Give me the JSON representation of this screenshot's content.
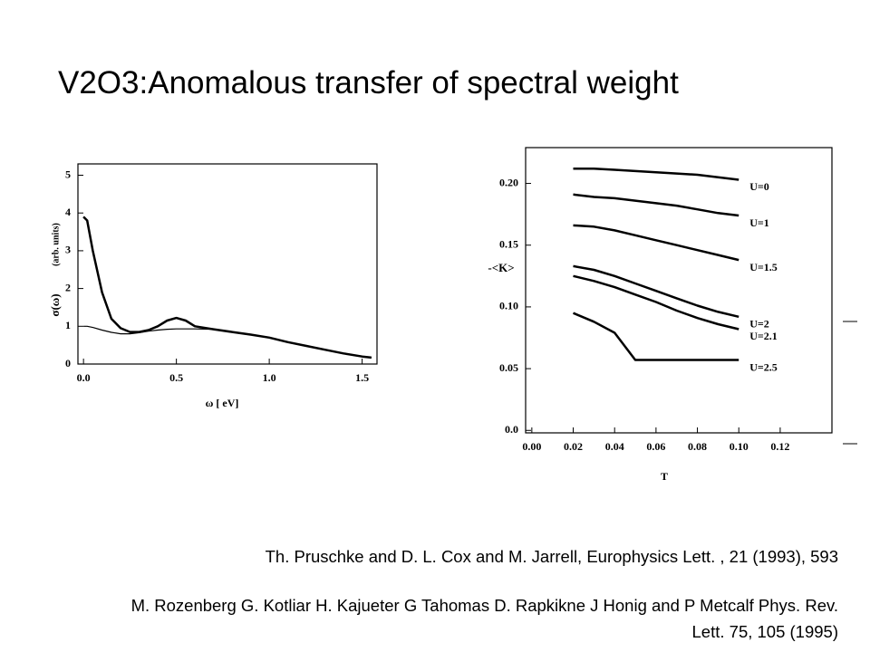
{
  "title": "V2O3:Anomalous transfer of spectral weight",
  "references": [
    "Th. Pruschke and D. L. Cox and M. Jarrell, Europhysics Lett. , 21 (1993), 593",
    "M. Rozenberg G. Kotliar H. Kajueter G Tahomas D. Rapkikne J Honig and P Metcalf Phys. Rev. Lett. 75, 105 (1995)"
  ],
  "chart_data": [
    {
      "type": "line",
      "xlabel": "ω  [ eV]",
      "ylabel": "σ(ω)",
      "ylabel_units": "(arb. units)",
      "x": [
        0,
        0.02,
        0.05,
        0.1,
        0.15,
        0.2,
        0.25,
        0.3,
        0.35,
        0.4,
        0.45,
        0.5,
        0.55,
        0.6,
        0.7,
        0.8,
        0.9,
        1.0,
        1.1,
        1.2,
        1.3,
        1.4,
        1.5,
        1.55
      ],
      "series": [
        {
          "color": "#000000",
          "width": 2.5,
          "values": [
            3.9,
            3.8,
            3.0,
            1.9,
            1.2,
            0.95,
            0.85,
            0.85,
            0.9,
            1.0,
            1.15,
            1.22,
            1.15,
            1.0,
            0.92,
            0.85,
            0.78,
            0.7,
            0.58,
            0.48,
            0.38,
            0.28,
            0.2,
            0.17
          ]
        },
        {
          "color": "#000000",
          "width": 1.2,
          "values": [
            1.0,
            1.0,
            0.97,
            0.9,
            0.84,
            0.8,
            0.8,
            0.83,
            0.87,
            0.9,
            0.92,
            0.93,
            0.93,
            0.93,
            0.92,
            0.85,
            0.78,
            0.7,
            0.58,
            0.48,
            0.38,
            0.28,
            0.2,
            0.17
          ]
        }
      ],
      "xlim": [
        -0.03,
        1.58
      ],
      "ylim": [
        0,
        5.3
      ],
      "xticks": [
        {
          "value": 0,
          "label": "0.0"
        },
        0.5,
        {
          "value": 1,
          "label": "1.0"
        },
        1.5
      ],
      "yticks": [
        0,
        1,
        2,
        3,
        4,
        5
      ]
    },
    {
      "type": "line",
      "xlabel": "T",
      "ylabel": "-<K>",
      "x": [
        0.02,
        0.03,
        0.04,
        0.05,
        0.06,
        0.07,
        0.08,
        0.09,
        0.1
      ],
      "series": [
        {
          "name": "U=0",
          "color": "#000000",
          "width": 2.5,
          "values": [
            0.212,
            0.212,
            0.211,
            0.21,
            0.209,
            0.208,
            0.207,
            0.205,
            0.203
          ]
        },
        {
          "name": "U=1",
          "color": "#000000",
          "width": 2.5,
          "values": [
            0.191,
            0.189,
            0.188,
            0.186,
            0.184,
            0.182,
            0.179,
            0.176,
            0.174
          ]
        },
        {
          "name": "U=1.5",
          "color": "#000000",
          "width": 2.5,
          "values": [
            0.166,
            0.165,
            0.162,
            0.158,
            0.154,
            0.15,
            0.146,
            0.142,
            0.138
          ]
        },
        {
          "name": "U=2",
          "color": "#000000",
          "width": 2.5,
          "values": [
            0.133,
            0.13,
            0.125,
            0.119,
            0.113,
            0.107,
            0.101,
            0.096,
            0.092
          ]
        },
        {
          "name": "U=2.1",
          "color": "#000000",
          "width": 2.5,
          "values": [
            0.125,
            0.121,
            0.116,
            0.11,
            0.104,
            0.097,
            0.091,
            0.086,
            0.082
          ]
        },
        {
          "name": "U=2.5",
          "color": "#000000",
          "width": 2.5,
          "values": [
            0.095,
            0.088,
            0.079,
            0.057,
            0.057,
            0.057,
            0.057,
            0.057,
            0.057
          ]
        }
      ],
      "xlim": [
        -0.003,
        0.145
      ],
      "ylim": [
        -0.002,
        0.229
      ],
      "xticks": [
        {
          "value": 0,
          "label": "0.00"
        },
        0.02,
        0.04,
        0.06,
        0.08,
        {
          "value": 0.1,
          "label": "0.10"
        },
        0.12
      ],
      "yticks": [
        {
          "value": 0,
          "label": "0.0"
        },
        0.05,
        {
          "value": 0.1,
          "label": "0.10"
        },
        0.15,
        {
          "value": 0.2,
          "label": "0.20"
        }
      ]
    }
  ]
}
